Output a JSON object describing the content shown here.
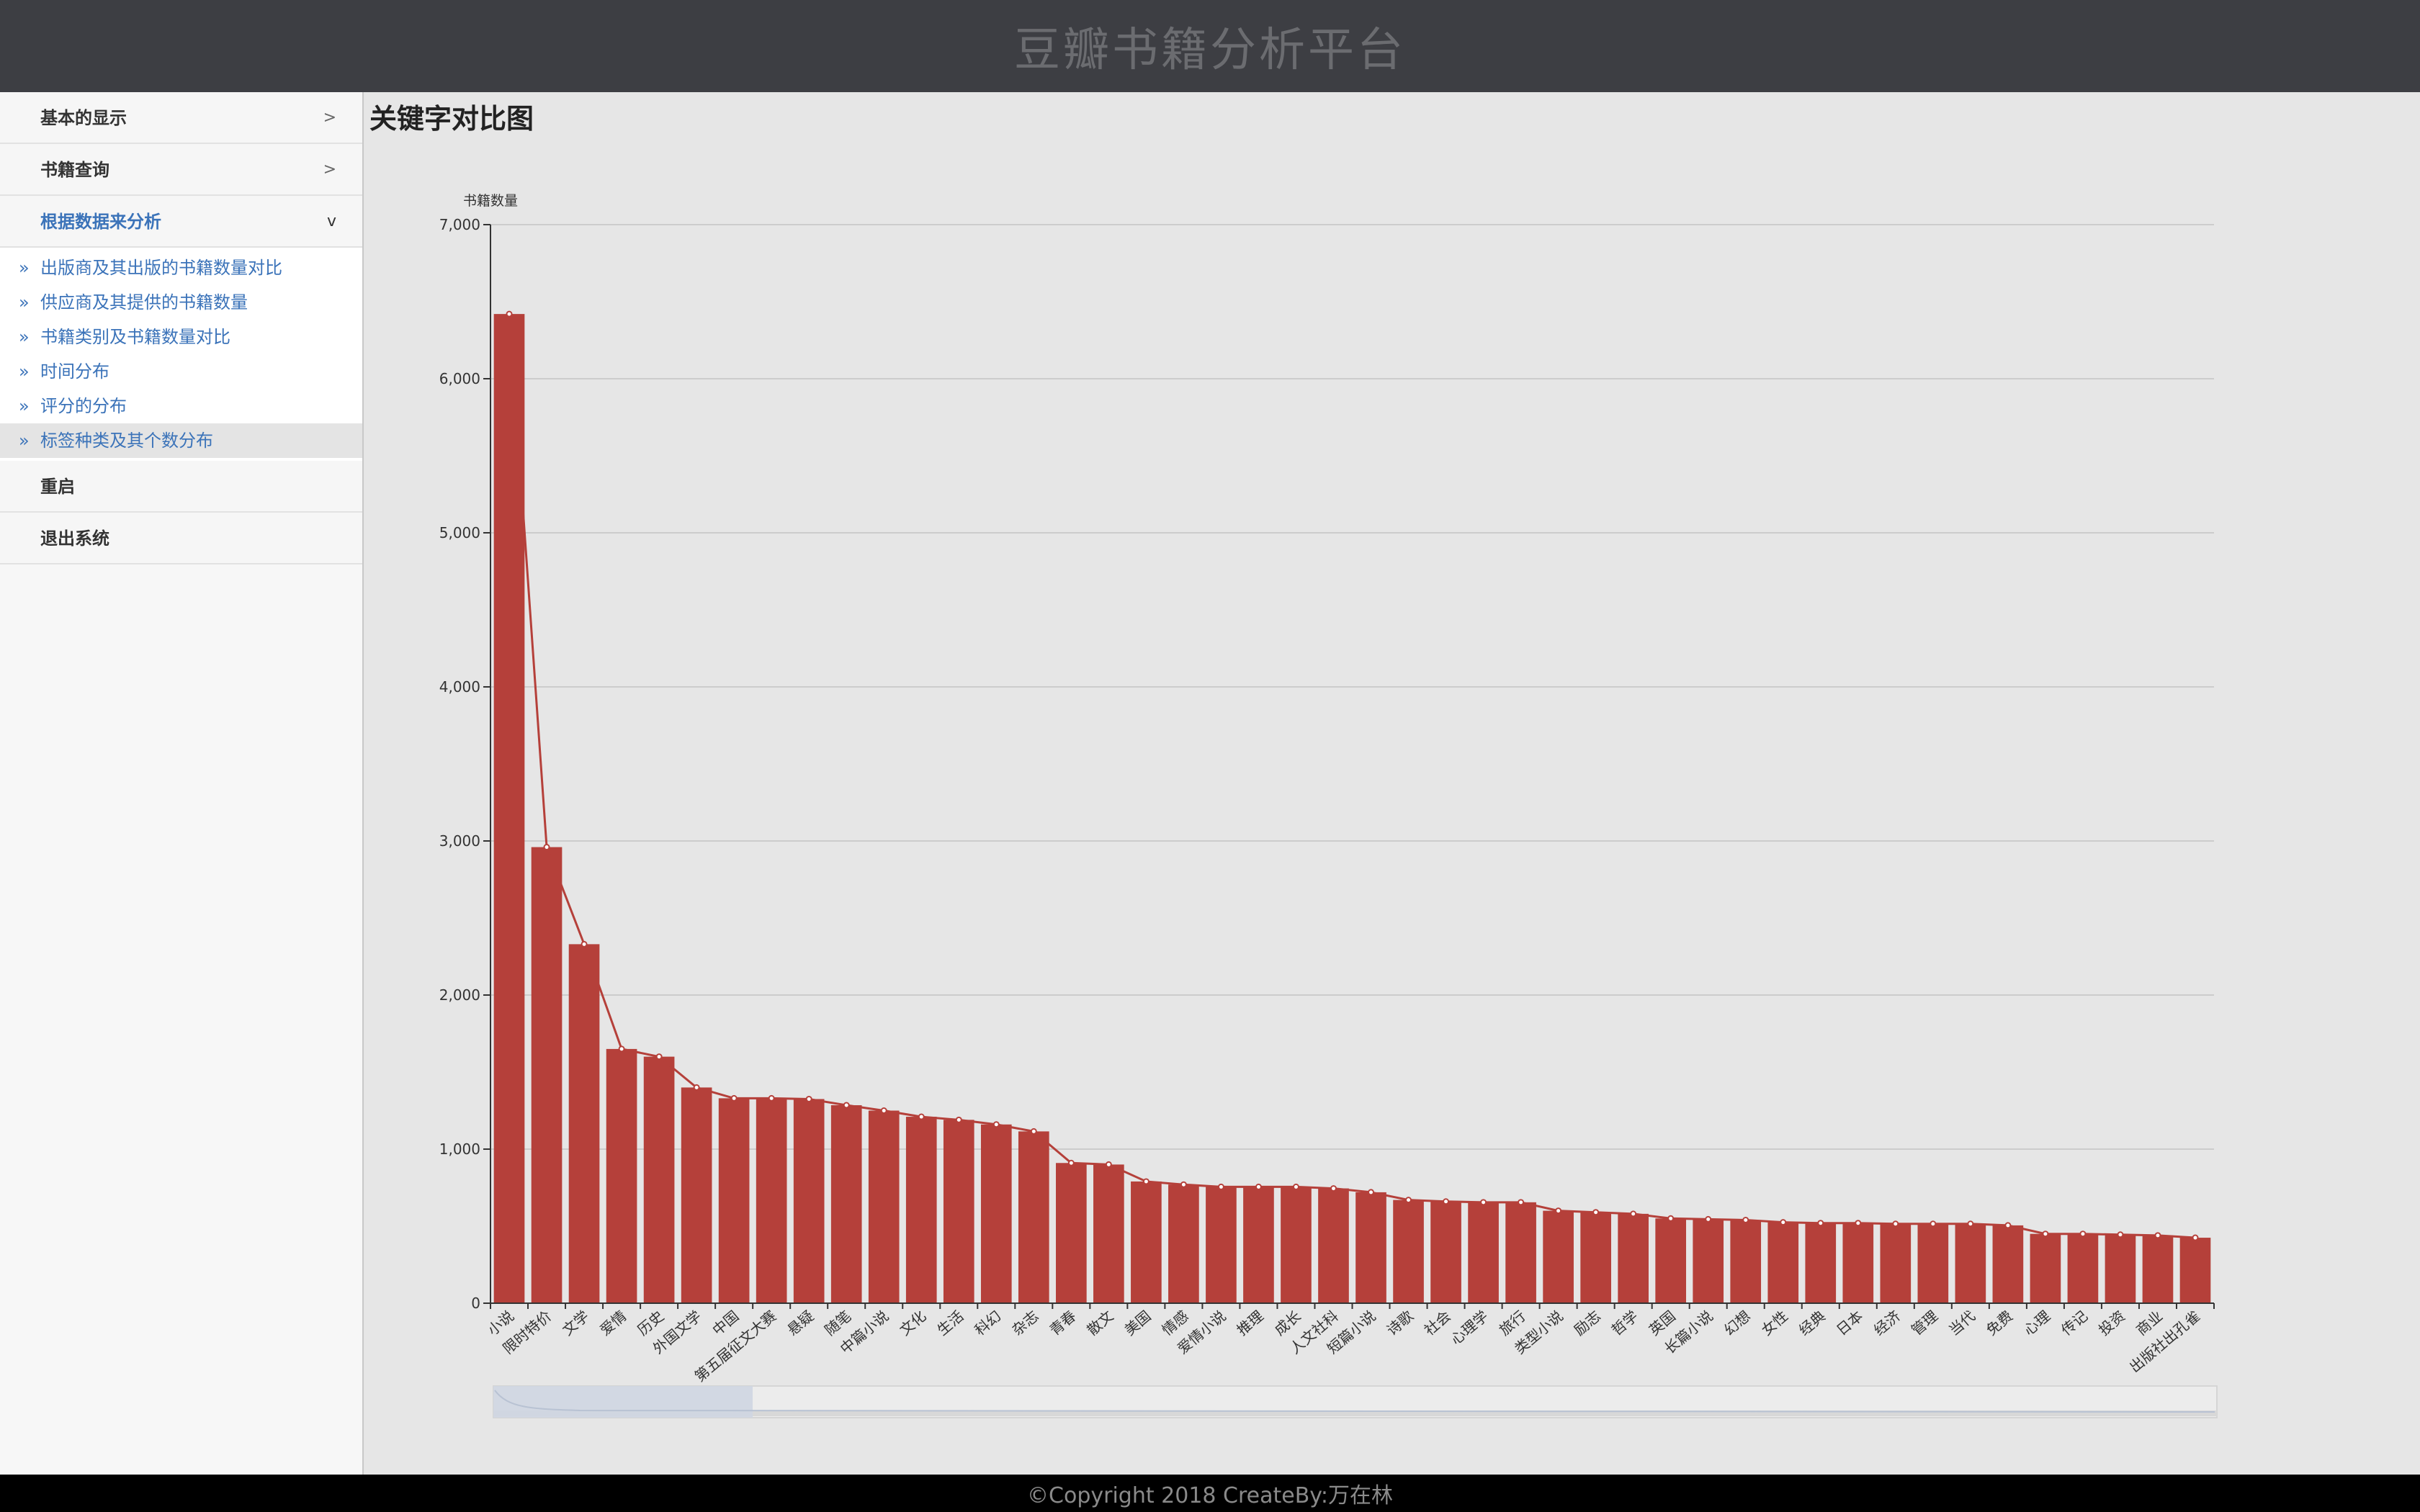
{
  "header": {
    "title": "豆瓣书籍分析平台"
  },
  "sidebar": {
    "groups": [
      {
        "label": "基本的显示",
        "chevron": ">"
      },
      {
        "label": "书籍查询",
        "chevron": ">"
      },
      {
        "label": "根据数据来分析",
        "chevron": "v"
      },
      {
        "label": "重启"
      },
      {
        "label": "退出系统"
      }
    ],
    "sub_marker": "»",
    "subitems": [
      {
        "label": "出版商及其出版的书籍数量对比"
      },
      {
        "label": "供应商及其提供的书籍数量"
      },
      {
        "label": "书籍类别及书籍数量对比"
      },
      {
        "label": "时间分布"
      },
      {
        "label": "评分的分布"
      },
      {
        "label": "标签种类及其个数分布"
      }
    ]
  },
  "main": {
    "title": "关键字对比图"
  },
  "chart_data": {
    "type": "bar",
    "ylabel": "书籍数量",
    "ylim": [
      0,
      7000
    ],
    "yticks": [
      "0",
      "1,000",
      "2,000",
      "3,000",
      "4,000",
      "5,000",
      "6,000",
      "7,000"
    ],
    "grid": true,
    "bar_color": "#b5403a",
    "line_color": "#b5403a",
    "has_datazoom": true,
    "categories": [
      "小说",
      "限时特价",
      "文学",
      "爱情",
      "历史",
      "外国文学",
      "中国",
      "第五届征文大赛",
      "悬疑",
      "随笔",
      "中篇小说",
      "文化",
      "生活",
      "科幻",
      "杂志",
      "青春",
      "散文",
      "美国",
      "情感",
      "爱情小说",
      "推理",
      "成长",
      "人文社科",
      "短篇小说",
      "诗歌",
      "社会",
      "心理学",
      "旅行",
      "类型小说",
      "励志",
      "哲学",
      "英国",
      "长篇小说",
      "幻想",
      "女性",
      "经典",
      "日本",
      "经济",
      "管理",
      "当代",
      "免费",
      "心理",
      "传记",
      "投资",
      "商业",
      "出版社出孔雀"
    ],
    "series": [
      {
        "type": "bar",
        "values": [
          6420,
          2960,
          2330,
          1650,
          1600,
          1400,
          1330,
          1330,
          1325,
          1285,
          1250,
          1210,
          1190,
          1160,
          1115,
          910,
          900,
          790,
          770,
          755,
          755,
          755,
          745,
          720,
          670,
          660,
          655,
          655,
          600,
          590,
          580,
          550,
          545,
          540,
          525,
          520,
          520,
          515,
          515,
          515,
          505,
          450,
          450,
          445,
          440,
          425
        ]
      },
      {
        "type": "line",
        "values": [
          6420,
          2960,
          2330,
          1650,
          1600,
          1400,
          1330,
          1330,
          1325,
          1285,
          1250,
          1210,
          1190,
          1160,
          1115,
          910,
          900,
          790,
          770,
          755,
          755,
          755,
          745,
          720,
          670,
          660,
          655,
          655,
          600,
          590,
          580,
          550,
          545,
          540,
          525,
          520,
          520,
          515,
          515,
          515,
          505,
          450,
          450,
          445,
          440,
          425
        ]
      }
    ]
  },
  "footer": {
    "text": "©Copyright 2018 CreateBy:万在林"
  }
}
